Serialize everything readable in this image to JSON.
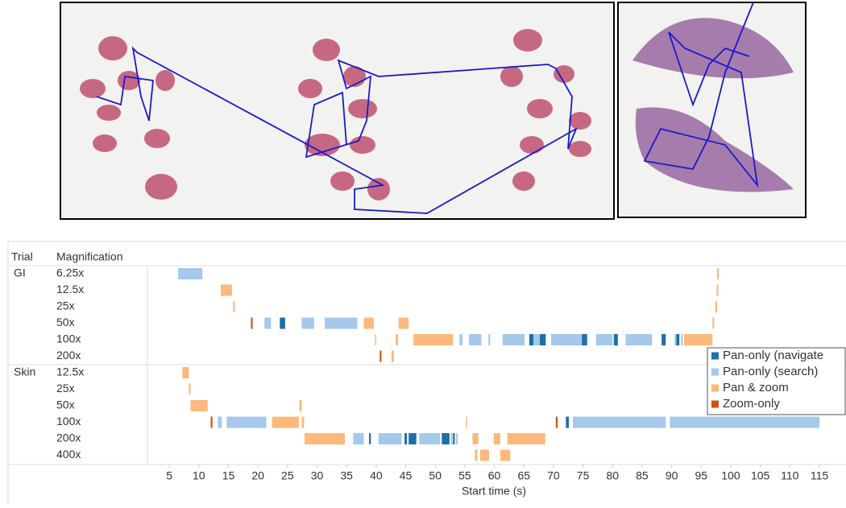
{
  "chart_data": {
    "type": "gantt",
    "column_headers": [
      "Trial",
      "Magnification"
    ],
    "x_label": "Start time (s)",
    "xlim": [
      1.3,
      119.5
    ],
    "xticks": [
      5,
      10,
      15,
      20,
      25,
      30,
      35,
      40,
      45,
      50,
      55,
      60,
      65,
      70,
      75,
      80,
      85,
      90,
      95,
      100,
      105,
      110,
      115
    ],
    "series": [
      {
        "name": "Pan-only (navigate",
        "color": "#1f6ea6"
      },
      {
        "name": "Pan-only (search)",
        "color": "#a5c8eb"
      },
      {
        "name": "Pan & zoom",
        "color": "#fdb97b"
      },
      {
        "name": "Zoom-only",
        "color": "#c65511"
      }
    ],
    "groups": [
      {
        "trial": "GI",
        "rows": [
          {
            "label": "6.25x",
            "spans": [
              [],
              [
                [
                  6.5,
                  10.6
                ]
              ],
              [
                [
                  97.7,
                  98.0
                ]
              ],
              []
            ]
          },
          {
            "label": "12.5x",
            "spans": [
              [],
              [],
              [
                [
                  13.7,
                  15.6
                ],
                [
                  97.6,
                  97.9
                ]
              ],
              []
            ]
          },
          {
            "label": "25x",
            "spans": [
              [],
              [],
              [
                [
                  15.8,
                  16.1
                ],
                [
                  97.4,
                  97.7
                ]
              ],
              []
            ]
          },
          {
            "label": "50x",
            "spans": [
              [
                [
                  23.7,
                  24.6
                ]
              ],
              [
                [
                  21.1,
                  22.2
                ],
                [
                  27.4,
                  29.5
                ],
                [
                  31.3,
                  36.8
                ]
              ],
              [
                [
                  37.9,
                  39.6
                ],
                [
                  43.8,
                  45.5
                ],
                [
                  96.9,
                  97.2
                ]
              ],
              [
                [
                  18.8,
                  19.1
                ]
              ]
            ]
          },
          {
            "label": "100x",
            "spans": [
              [
                [
                  65.9,
                  66.6
                ],
                [
                  67.7,
                  68.7
                ],
                [
                  74.8,
                  75.7
                ],
                [
                  80.2,
                  80.9
                ],
                [
                  88.3,
                  89.0
                ],
                [
                  90.8,
                  91.3
                ]
              ],
              [
                [
                  54.1,
                  54.6
                ],
                [
                  55.7,
                  57.8
                ],
                [
                  59.0,
                  59.3
                ],
                [
                  61.4,
                  65.1
                ],
                [
                  66.6,
                  67.7
                ],
                [
                  69.6,
                  74.8
                ],
                [
                  77.2,
                  80.0
                ],
                [
                  82.2,
                  86.7
                ],
                [
                  90.5,
                  90.8
                ],
                [
                  91.6,
                  91.9
                ]
              ],
              [
                [
                  39.8,
                  40.0
                ],
                [
                  43.3,
                  43.7
                ],
                [
                  46.3,
                  53.0
                ],
                [
                  92.1,
                  96.9
                ]
              ],
              []
            ]
          },
          {
            "label": "200x",
            "spans": [
              [],
              [],
              [
                [
                  42.6,
                  43.0
                ]
              ],
              [
                [
                  40.6,
                  40.9
                ]
              ]
            ]
          }
        ]
      },
      {
        "trial": "Skin",
        "rows": [
          {
            "label": "12.5x",
            "spans": [
              [],
              [],
              [
                [
                  7.2,
                  8.3
                ]
              ],
              []
            ]
          },
          {
            "label": "25x",
            "spans": [
              [],
              [],
              [
                [
                  8.3,
                  8.6
                ]
              ],
              []
            ]
          },
          {
            "label": "50x",
            "spans": [
              [],
              [],
              [
                [
                  8.6,
                  11.5
                ],
                [
                  27.0,
                  27.4
                ]
              ],
              []
            ]
          },
          {
            "label": "100x",
            "spans": [
              [
                [
                  72.1,
                  72.6
                ]
              ],
              [
                [
                  13.2,
                  13.9
                ],
                [
                  14.7,
                  21.4
                ],
                [
                  73.3,
                  89.0
                ],
                [
                  89.7,
                  115.0
                ]
              ],
              [
                [
                  22.4,
                  26.9
                ],
                [
                  27.4,
                  27.8
                ],
                [
                  55.2,
                  55.4
                ]
              ],
              [
                [
                  12.0,
                  12.3
                ],
                [
                  70.4,
                  70.7
                ]
              ]
            ]
          },
          {
            "label": "200x",
            "spans": [
              [
                [
                  38.8,
                  39.1
                ],
                [
                  44.8,
                  45.2
                ],
                [
                  45.5,
                  46.8
                ],
                [
                  51.1,
                  52.4
                ],
                [
                  53.0,
                  53.3
                ]
              ],
              [
                [
                  36.1,
                  37.9
                ],
                [
                  40.4,
                  44.3
                ],
                [
                  47.3,
                  50.8
                ],
                [
                  52.6,
                  52.9
                ],
                [
                  53.5,
                  53.8
                ]
              ],
              [
                [
                  27.9,
                  34.7
                ],
                [
                  56.3,
                  57.3
                ],
                [
                  59.9,
                  61.0
                ],
                [
                  62.2,
                  68.6
                ]
              ],
              []
            ]
          },
          {
            "label": "400x",
            "spans": [
              [],
              [],
              [
                [
                  56.7,
                  57.1
                ],
                [
                  57.6,
                  59.1
                ],
                [
                  61.0,
                  62.7
                ]
              ],
              []
            ]
          }
        ]
      }
    ]
  }
}
